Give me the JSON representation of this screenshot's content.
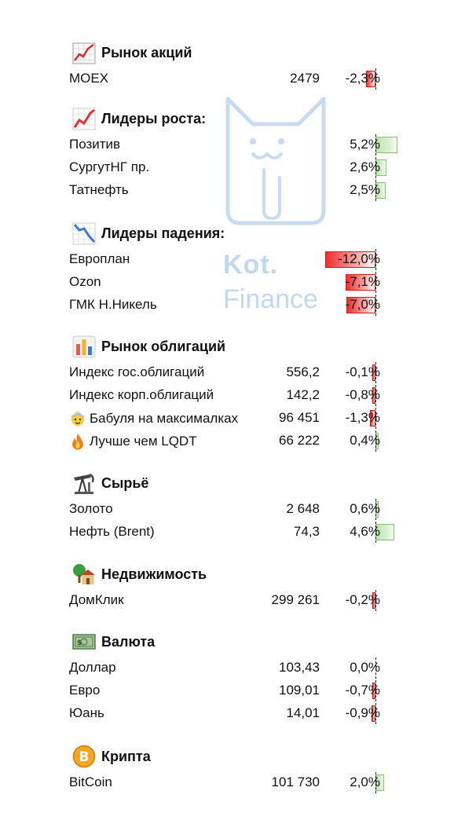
{
  "watermark": {
    "line1": "Kot.",
    "line2": "Finance"
  },
  "colors": {
    "negative": "#ee2e2e",
    "positive": "#bde5b0",
    "watermark": "#c2d8ef"
  },
  "sections": [
    {
      "id": "stocks",
      "title": "Рынок акций",
      "icon": "rising-chart-icon",
      "rows": [
        {
          "name": "MOEX",
          "value": "2479",
          "change": "-2,3%",
          "pct": -2.3
        }
      ]
    },
    {
      "id": "gainers",
      "title": "Лидеры роста:",
      "icon": "chart-increasing-icon",
      "rows": [
        {
          "name": "Позитив",
          "value": "",
          "change": "5,2%",
          "pct": 5.2
        },
        {
          "name": "СургутНГ пр.",
          "value": "",
          "change": "2,6%",
          "pct": 2.6
        },
        {
          "name": "Татнефть",
          "value": "",
          "change": "2,5%",
          "pct": 2.5
        }
      ]
    },
    {
      "id": "losers",
      "title": "Лидеры падения:",
      "icon": "chart-decreasing-icon",
      "rows": [
        {
          "name": "Европлан",
          "value": "",
          "change": "-12,0%",
          "pct": -12.0
        },
        {
          "name": "Ozon",
          "value": "",
          "change": "-7,1%",
          "pct": -7.1
        },
        {
          "name": "ГМК Н.Никель",
          "value": "",
          "change": "-7,0%",
          "pct": -7.0
        }
      ]
    },
    {
      "id": "bonds",
      "title": "Рынок облигаций",
      "icon": "bar-chart-icon",
      "rows": [
        {
          "name": "Индекс гос.облигаций",
          "value": "556,2",
          "change": "-0,1%",
          "pct": -0.1
        },
        {
          "name": "Индекс корп.облигаций",
          "value": "142,2",
          "change": "-0,8%",
          "pct": -0.8
        },
        {
          "name": "Бабуля на максималках",
          "value": "96 451",
          "change": "-1,3%",
          "pct": -1.3,
          "emoji": "old-woman-icon"
        },
        {
          "name": "Лучше чем LQDT",
          "value": "66 222",
          "change": "0,4%",
          "pct": 0.4,
          "emoji": "fire-icon"
        }
      ]
    },
    {
      "id": "commodities",
      "title": "Сырьё",
      "icon": "oil-pump-icon",
      "rows": [
        {
          "name": "Золото",
          "value": "2 648",
          "change": "0,6%",
          "pct": 0.6
        },
        {
          "name": "Нефть (Brent)",
          "value": "74,3",
          "change": "4,6%",
          "pct": 4.6
        }
      ]
    },
    {
      "id": "realty",
      "title": "Недвижимость",
      "icon": "house-icon",
      "rows": [
        {
          "name": "ДомКлик",
          "value": "299 261",
          "change": "-0,2%",
          "pct": -0.2
        }
      ]
    },
    {
      "id": "currency",
      "title": "Валюта",
      "icon": "banknote-icon",
      "rows": [
        {
          "name": "Доллар",
          "value": "103,43",
          "change": "0,0%",
          "pct": 0.0
        },
        {
          "name": "Евро",
          "value": "109,01",
          "change": "-0,7%",
          "pct": -0.7
        },
        {
          "name": "Юань",
          "value": "14,01",
          "change": "-0,9%",
          "pct": -0.9
        }
      ]
    },
    {
      "id": "crypto",
      "title": "Крипта",
      "icon": "bitcoin-icon",
      "rows": [
        {
          "name": "BitCoin",
          "value": "101 730",
          "change": "2,0%",
          "pct": 2.0
        }
      ]
    }
  ]
}
